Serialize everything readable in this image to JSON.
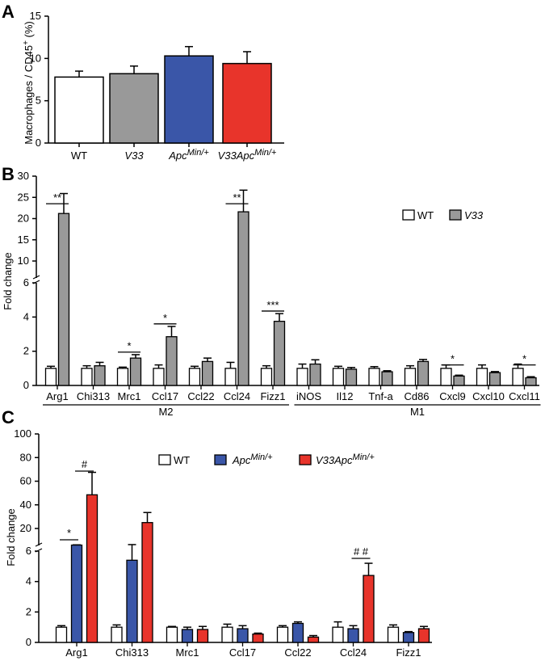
{
  "chart_data": [
    {
      "panel": "A",
      "type": "bar",
      "ylabel": "Macrophages / CD45+ (%)",
      "ylim": [
        0,
        15
      ],
      "yticks": [
        0,
        5,
        10,
        15
      ],
      "categories": [
        {
          "label": "WT",
          "italic": false,
          "sup": ""
        },
        {
          "label": "V33",
          "italic": true,
          "sup": ""
        },
        {
          "label": "Apc",
          "italic": true,
          "sup": "Min/+"
        },
        {
          "label": "V33Apc",
          "italic": true,
          "sup": "Min/+"
        }
      ],
      "values": [
        7.8,
        8.2,
        10.3,
        9.4
      ],
      "errors": [
        0.7,
        0.9,
        1.1,
        1.4
      ],
      "colors": [
        "#ffffff",
        "#999999",
        "#3a56a8",
        "#e8342b"
      ]
    },
    {
      "panel": "B",
      "type": "bar",
      "ylabel": "Fold change",
      "axis_break": true,
      "ylim_lower": [
        0,
        6
      ],
      "ylim_upper": [
        6,
        30
      ],
      "yticks_lower": [
        0,
        2,
        4,
        6
      ],
      "yticks_upper": [
        6,
        10,
        15,
        20,
        25,
        30
      ],
      "categories": [
        "Arg1",
        "Chi313",
        "Mrc1",
        "Ccl17",
        "Ccl22",
        "Ccl24",
        "Fizz1",
        "iNOS",
        "Il12",
        "Tnf-a",
        "Cd86",
        "Cxcl9",
        "Cxcl10",
        "Cxcl11"
      ],
      "groups": [
        {
          "label": "M2",
          "range": [
            0,
            6
          ]
        },
        {
          "label": "M1",
          "range": [
            7,
            13
          ]
        }
      ],
      "series": [
        {
          "name": "WT",
          "italic": false,
          "color": "#ffffff",
          "values": [
            1,
            1,
            1,
            1,
            1,
            1,
            1,
            1,
            1,
            1,
            1,
            1,
            1,
            1
          ],
          "errors": [
            0.12,
            0.15,
            0.07,
            0.2,
            0.12,
            0.35,
            0.15,
            0.25,
            0.12,
            0.1,
            0.15,
            0.2,
            0.2,
            0.25
          ]
        },
        {
          "name": "V33",
          "italic": true,
          "color": "#999999",
          "values": [
            21.2,
            1.15,
            1.6,
            2.85,
            1.4,
            21.6,
            3.75,
            1.25,
            0.95,
            0.8,
            1.4,
            0.55,
            0.75,
            0.45
          ],
          "errors": [
            4.7,
            0.2,
            0.2,
            0.6,
            0.2,
            5.1,
            0.45,
            0.25,
            0.1,
            0.06,
            0.12,
            0.05,
            0.06,
            0.06
          ]
        }
      ],
      "significance": [
        {
          "category": 0,
          "label": "**",
          "y": 23.5
        },
        {
          "category": 2,
          "label": "*",
          "y": 1.95
        },
        {
          "category": 3,
          "label": "*",
          "y": 3.6
        },
        {
          "category": 5,
          "label": "**",
          "y": 23.5
        },
        {
          "category": 6,
          "label": "***",
          "y": 4.35
        },
        {
          "category": 11,
          "label": "*",
          "y": 1.2
        },
        {
          "category": 13,
          "label": "*",
          "y": 1.2
        }
      ],
      "legend": "top-right"
    },
    {
      "panel": "C",
      "type": "bar",
      "ylabel": "Fold change",
      "axis_break": true,
      "ylim_lower": [
        0,
        6
      ],
      "ylim_upper": [
        6,
        100
      ],
      "yticks_lower": [
        0,
        2,
        4,
        6
      ],
      "yticks_upper": [
        20,
        40,
        60,
        80,
        100
      ],
      "categories": [
        "Arg1",
        "Chi313",
        "Mrc1",
        "Ccl17",
        "Ccl22",
        "Ccl24",
        "Fizz1"
      ],
      "series": [
        {
          "name": "WT",
          "italic": false,
          "sup": "",
          "color": "#ffffff",
          "values": [
            1,
            1,
            1,
            1,
            1,
            1,
            1
          ],
          "errors": [
            0.1,
            0.15,
            0.05,
            0.2,
            0.1,
            0.35,
            0.15
          ]
        },
        {
          "name": "Apc",
          "italic": true,
          "sup": "Min/+",
          "color": "#3a56a8",
          "values": [
            6.3,
            5.4,
            0.85,
            0.9,
            1.25,
            0.9,
            0.65
          ]
        },
        {
          "name": "V33Apc",
          "italic": true,
          "sup": "Min/+",
          "color": "#e8342b",
          "values": [
            48.5,
            25,
            0.85,
            0.55,
            0.35,
            4.4,
            0.9
          ],
          "errors": [
            19,
            8.5,
            0.2,
            0.06,
            0.1,
            0.8,
            0.15
          ]
        }
      ],
      "blue_errors": [
        0.2,
        1.3,
        0.15,
        0.2,
        0.1,
        0.2,
        0.06
      ],
      "significance": [
        {
          "category": 0,
          "from": 0,
          "to": 1,
          "label": "*"
        },
        {
          "category": 0,
          "from": 1,
          "to": 2,
          "label": "#"
        },
        {
          "category": 5,
          "from": 1,
          "to": 2,
          "label": "# #"
        }
      ],
      "legend": "top"
    }
  ],
  "panel_labels": [
    "A",
    "B",
    "C"
  ]
}
